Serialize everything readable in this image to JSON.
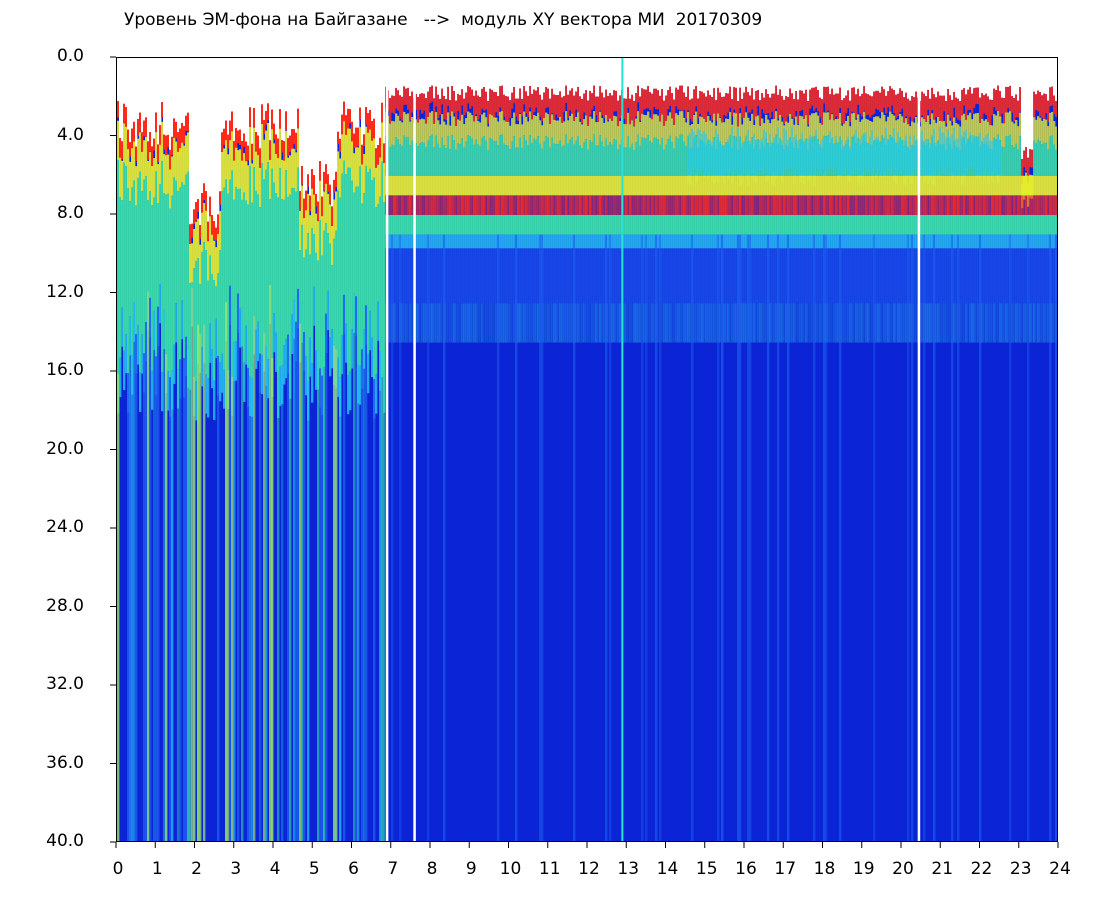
{
  "chart_data": {
    "type": "heatmap",
    "title": "Уровень ЭМ-фона на Байгазане   -->  модуль XY вектора МИ  20170309",
    "x_ticks": [
      "0",
      "1",
      "2",
      "3",
      "4",
      "5",
      "6",
      "7",
      "8",
      "9",
      "10",
      "11",
      "12",
      "13",
      "14",
      "15",
      "16",
      "17",
      "18",
      "19",
      "20",
      "21",
      "22",
      "23",
      "24"
    ],
    "y_ticks": [
      "0.0",
      "4.0",
      "8.0",
      "12.0",
      "16.0",
      "20.0",
      "24.0",
      "28.0",
      "32.0",
      "36.0",
      "40.0"
    ],
    "xlim": [
      0,
      24
    ],
    "ylim": [
      40,
      0
    ],
    "y_inverted": true,
    "colormap": [
      "#0a24d6",
      "#1f5df0",
      "#26c8f0",
      "#3cf0a0",
      "#e8f02a",
      "#ff2a1a"
    ],
    "gaps_hours": [
      6.85,
      7.55,
      12.85,
      20.4
    ],
    "regions": [
      {
        "hours": [
          0,
          6.8
        ],
        "red_top": 2.2,
        "green_bottom": 14.5,
        "note_bands": "streaky vertical yellow/green columns down to 40"
      },
      {
        "hours": [
          6.8,
          24
        ],
        "red_top": 1.8,
        "red_band": [
          7.0,
          8.0
        ],
        "green_bottom": 9.0,
        "cyan_band": [
          12.5,
          14.5
        ]
      }
    ]
  }
}
